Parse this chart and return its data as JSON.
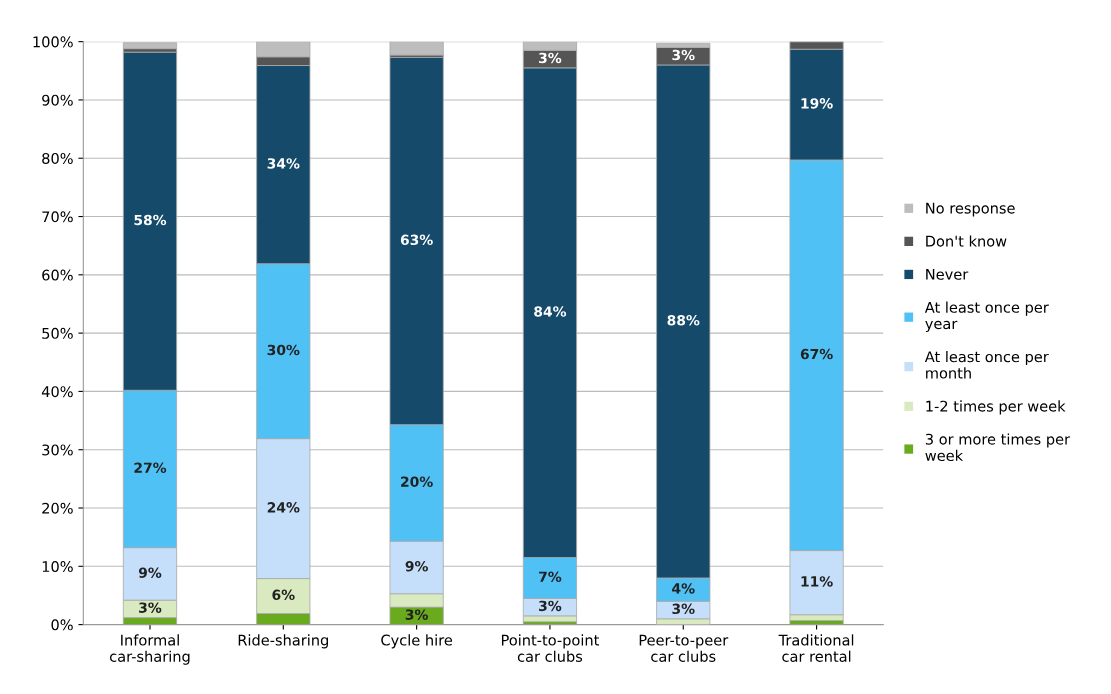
{
  "chart_data": {
    "type": "bar",
    "stacked": true,
    "categories": [
      "Informal\ncar-sharing",
      "Ride-sharing",
      "Cycle hire",
      "Point-to-point\ncar clubs",
      "Peer-to-peer\ncar clubs",
      "Traditional\ncar rental"
    ],
    "series": [
      {
        "name": "3 or more times per\nweek",
        "color": "#6aaa1e",
        "values": [
          1.2,
          1.9,
          3,
          0.5,
          null,
          0.7
        ],
        "value_labels": [
          null,
          null,
          "3%",
          null,
          null,
          null
        ]
      },
      {
        "name": "1-2 times per week",
        "color": "#d9eac0",
        "values": [
          3,
          6,
          2.3,
          1,
          1,
          1
        ],
        "value_labels": [
          "3%",
          "6%",
          null,
          null,
          null,
          null
        ]
      },
      {
        "name": "At least once per\nmonth",
        "color": "#c5dffa",
        "values": [
          9,
          24,
          9,
          3,
          3,
          11
        ],
        "value_labels": [
          "9%",
          "24%",
          "9%",
          "3%",
          "3%",
          "11%"
        ]
      },
      {
        "name": "At least once per\nyear",
        "color": "#4fc1f5",
        "values": [
          27,
          30,
          20,
          7,
          4,
          67
        ],
        "value_labels": [
          "27%",
          "30%",
          "20%",
          "7%",
          "4%",
          "67%"
        ]
      },
      {
        "name": "Never",
        "color": "#154a6b",
        "values": [
          58,
          34,
          63,
          84,
          88,
          19
        ],
        "value_labels": [
          "58%",
          "34%",
          "63%",
          "84%",
          "88%",
          "19%"
        ]
      },
      {
        "name": "Don't know",
        "color": "#555555",
        "values": [
          0.6,
          1.5,
          0.4,
          3,
          3,
          1.3
        ],
        "value_labels": [
          null,
          null,
          null,
          "3%",
          "3%",
          null
        ]
      },
      {
        "name": "No response",
        "color": "#bdbdbd",
        "values": [
          1.0,
          2.6,
          2.3,
          1.5,
          0.7,
          null
        ],
        "value_labels": [
          null,
          null,
          null,
          null,
          null,
          null
        ]
      }
    ],
    "ylim": [
      0,
      100
    ],
    "yticks": [
      {
        "value": 0,
        "label": "0%"
      },
      {
        "value": 10,
        "label": "10%"
      },
      {
        "value": 20,
        "label": "20%"
      },
      {
        "value": 30,
        "label": "30%"
      },
      {
        "value": 40,
        "label": "40%"
      },
      {
        "value": 50,
        "label": "50%"
      },
      {
        "value": 60,
        "label": "60%"
      },
      {
        "value": 70,
        "label": "70%"
      },
      {
        "value": 80,
        "label": "80%"
      },
      {
        "value": 90,
        "label": "90%"
      },
      {
        "value": 100,
        "label": "100%"
      }
    ],
    "grid": "y",
    "legend": "right"
  }
}
